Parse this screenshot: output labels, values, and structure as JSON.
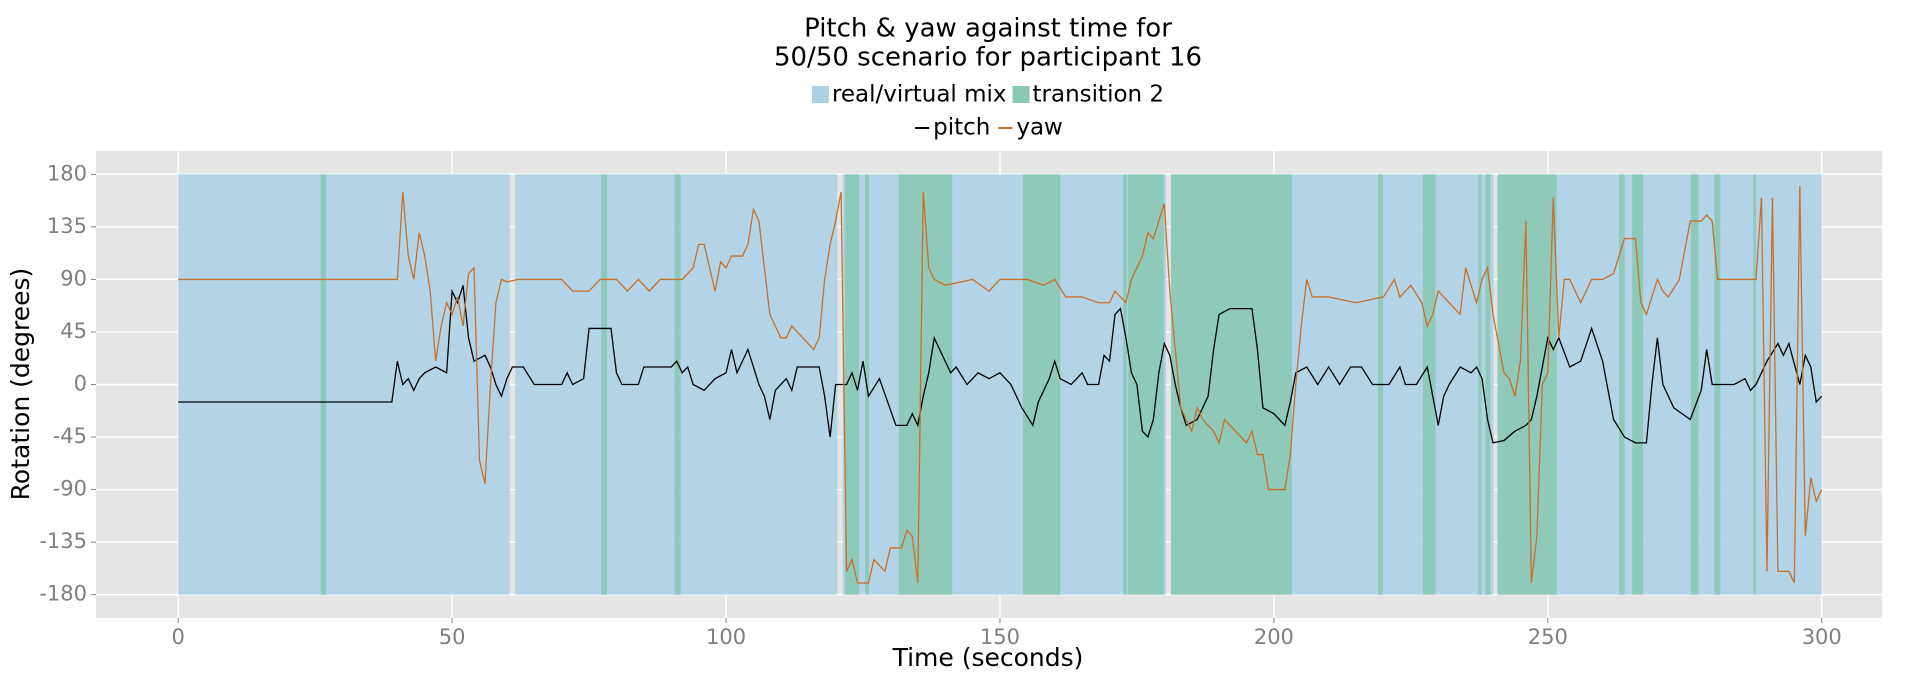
{
  "chart_data": {
    "type": "line",
    "title": [
      "Pitch & yaw against time for",
      "50/50 scenario for participant 16"
    ],
    "x_label": "Time (seconds)",
    "y_label": "Rotation (degrees)",
    "xlim": [
      -15,
      311
    ],
    "ylim": [
      -200,
      200
    ],
    "xticks": [
      0,
      50,
      100,
      150,
      200,
      250,
      300
    ],
    "yticks": [
      180,
      135,
      90,
      45,
      0,
      -45,
      -90,
      -135,
      -180
    ],
    "grid": true,
    "bands": [
      {
        "name": "real/virtual mix",
        "color": "#acd1e5",
        "intervals": [
          [
            0,
            60.5
          ],
          [
            61.5,
            120.3
          ],
          [
            121.3,
            180.3
          ],
          [
            181.3,
            240.1
          ],
          [
            241.1,
            300
          ]
        ]
      },
      {
        "name": "transition 2",
        "color": "#89c8b5",
        "intervals": [
          [
            26,
            27
          ],
          [
            77.2,
            78.3
          ],
          [
            90.6,
            91.7
          ],
          [
            121.7,
            124.3
          ],
          [
            125.4,
            126.1
          ],
          [
            131.5,
            141.3
          ],
          [
            154.2,
            161
          ],
          [
            172.5,
            173.2
          ],
          [
            173.4,
            179.9
          ],
          [
            181.2,
            203.3
          ],
          [
            219,
            219.9
          ],
          [
            227.2,
            229.5
          ],
          [
            237.3,
            237.9
          ],
          [
            238.6,
            239.5
          ],
          [
            240.8,
            251.6
          ],
          [
            263,
            264
          ],
          [
            265.4,
            267.4
          ],
          [
            276.1,
            277.5
          ],
          [
            280.4,
            281.5
          ],
          [
            287.5,
            288
          ]
        ]
      }
    ],
    "series": [
      {
        "name": "pitch",
        "color": "#000000",
        "x": [
          0,
          39,
          40,
          41,
          42,
          43,
          44,
          45,
          47,
          49,
          50,
          51,
          52,
          53,
          54,
          56,
          57,
          58,
          59,
          60,
          61,
          63,
          65,
          66,
          70,
          71,
          72,
          74,
          75,
          79,
          80,
          81,
          84,
          85,
          90,
          91,
          92,
          93,
          94,
          96,
          98,
          100,
          101,
          102,
          103,
          104,
          105,
          106,
          107,
          108,
          109,
          111,
          112,
          113,
          115,
          117,
          118,
          119,
          120,
          122,
          123,
          124,
          125,
          126,
          128,
          131,
          133,
          134,
          135,
          136,
          137,
          138,
          140,
          141,
          142,
          144,
          146,
          148,
          150,
          152,
          154,
          156,
          157,
          159,
          160,
          161,
          163,
          165,
          166,
          168,
          169,
          170,
          171,
          172,
          173,
          174,
          175,
          176,
          177,
          178,
          179,
          180,
          181,
          182,
          183,
          184,
          186,
          188,
          189,
          190,
          192,
          196,
          197,
          198,
          200,
          202,
          203,
          204,
          206,
          208,
          210,
          212,
          214,
          216,
          218,
          221,
          223,
          224,
          226,
          228,
          229,
          230,
          231,
          232,
          234,
          236,
          237,
          238,
          239,
          240,
          242,
          244,
          246,
          247,
          248,
          250,
          251,
          252,
          254,
          256,
          258,
          260,
          262,
          264,
          266,
          268,
          269,
          270,
          271,
          273,
          276,
          278,
          279,
          280,
          282,
          284,
          286,
          287,
          288,
          290,
          292,
          293,
          294,
          296,
          297,
          298,
          299,
          300
        ],
        "values": [
          -15,
          -15,
          20,
          0,
          5,
          -5,
          5,
          10,
          15,
          10,
          80,
          70,
          85,
          40,
          20,
          25,
          15,
          0,
          -10,
          5,
          15,
          15,
          0,
          0,
          0,
          10,
          0,
          5,
          48,
          48,
          10,
          0,
          0,
          15,
          15,
          20,
          10,
          15,
          0,
          -5,
          5,
          10,
          30,
          10,
          20,
          30,
          15,
          0,
          -10,
          -30,
          -5,
          5,
          -5,
          15,
          15,
          15,
          -10,
          -45,
          0,
          0,
          10,
          -5,
          20,
          -10,
          5,
          -35,
          -35,
          -25,
          -35,
          -10,
          10,
          40,
          20,
          10,
          15,
          0,
          10,
          5,
          10,
          0,
          -20,
          -35,
          -15,
          5,
          20,
          5,
          0,
          10,
          0,
          0,
          25,
          20,
          60,
          65,
          40,
          10,
          0,
          -40,
          -45,
          -30,
          10,
          35,
          25,
          0,
          -20,
          -35,
          -30,
          -10,
          30,
          60,
          65,
          65,
          30,
          -20,
          -25,
          -35,
          -15,
          10,
          15,
          0,
          15,
          0,
          15,
          15,
          0,
          0,
          15,
          0,
          0,
          15,
          -10,
          -35,
          -10,
          0,
          15,
          10,
          15,
          5,
          -30,
          -50,
          -48,
          -40,
          -35,
          -30,
          -10,
          40,
          30,
          40,
          15,
          20,
          48,
          20,
          -30,
          -45,
          -50,
          -50,
          0,
          40,
          0,
          -20,
          -30,
          -5,
          30,
          0,
          0,
          0,
          5,
          -5,
          0,
          20,
          35,
          25,
          35,
          0,
          25,
          15,
          -15,
          -10
        ]
      },
      {
        "name": "yaw",
        "color": "#c8702a",
        "x": [
          0,
          40,
          41,
          42,
          43,
          44,
          45,
          46,
          47,
          48,
          49,
          50,
          51,
          52,
          53,
          54,
          55,
          56,
          57,
          58,
          59,
          60,
          62,
          70,
          72,
          75,
          77,
          80,
          82,
          84,
          86,
          88,
          92,
          94,
          95,
          96,
          97,
          98,
          99,
          100,
          101,
          103,
          104,
          105,
          106,
          107,
          108,
          110,
          111,
          112,
          114,
          116,
          117,
          118,
          119,
          120,
          121,
          122,
          123,
          124,
          126,
          127,
          129,
          130,
          132,
          133,
          134,
          135,
          136,
          137,
          138,
          140,
          145,
          148,
          150,
          155,
          158,
          160,
          162,
          165,
          168,
          170,
          171,
          173,
          174,
          176,
          177,
          178,
          179,
          180,
          181,
          182,
          183,
          184,
          185,
          186,
          187,
          189,
          190,
          191,
          193,
          195,
          196,
          197,
          198,
          199,
          201,
          202,
          203,
          204,
          205,
          206,
          207,
          210,
          215,
          220,
          222,
          223,
          225,
          227,
          228,
          229,
          230,
          232,
          234,
          235,
          237,
          238,
          239,
          240,
          242,
          243,
          244,
          245,
          246,
          247,
          248,
          249,
          250,
          251,
          252,
          253,
          254,
          256,
          258,
          260,
          262,
          264,
          266,
          267,
          268,
          270,
          271,
          272,
          274,
          276,
          278,
          279,
          280,
          281,
          285,
          288,
          289,
          290,
          291,
          292,
          294,
          295,
          296,
          297,
          298,
          299,
          300
        ],
        "values": [
          90,
          90,
          165,
          110,
          90,
          130,
          110,
          80,
          20,
          50,
          70,
          60,
          75,
          50,
          95,
          100,
          -65,
          -85,
          0,
          70,
          90,
          88,
          90,
          90,
          80,
          80,
          90,
          90,
          80,
          90,
          80,
          90,
          90,
          100,
          120,
          120,
          100,
          80,
          105,
          100,
          110,
          110,
          120,
          150,
          140,
          100,
          60,
          40,
          40,
          50,
          40,
          30,
          40,
          90,
          120,
          140,
          165,
          -160,
          -150,
          -170,
          -170,
          -150,
          -160,
          -140,
          -140,
          -125,
          -130,
          -170,
          165,
          100,
          90,
          85,
          90,
          80,
          90,
          90,
          85,
          90,
          75,
          75,
          70,
          70,
          80,
          70,
          90,
          110,
          130,
          125,
          140,
          155,
          80,
          30,
          -20,
          -30,
          -40,
          -20,
          -30,
          -40,
          -50,
          -30,
          -40,
          -50,
          -40,
          -60,
          -60,
          -90,
          -90,
          -90,
          -60,
          0,
          50,
          90,
          75,
          75,
          70,
          75,
          90,
          75,
          85,
          70,
          50,
          60,
          80,
          70,
          60,
          100,
          70,
          90,
          100,
          60,
          10,
          5,
          -10,
          20,
          140,
          -170,
          -130,
          0,
          10,
          160,
          40,
          90,
          90,
          70,
          90,
          90,
          95,
          125,
          125,
          70,
          60,
          90,
          80,
          75,
          90,
          140,
          140,
          145,
          140,
          90,
          90,
          90,
          160,
          -160,
          160,
          -160,
          -160,
          -170,
          170,
          -130,
          -80,
          -100,
          -90
        ]
      }
    ]
  }
}
